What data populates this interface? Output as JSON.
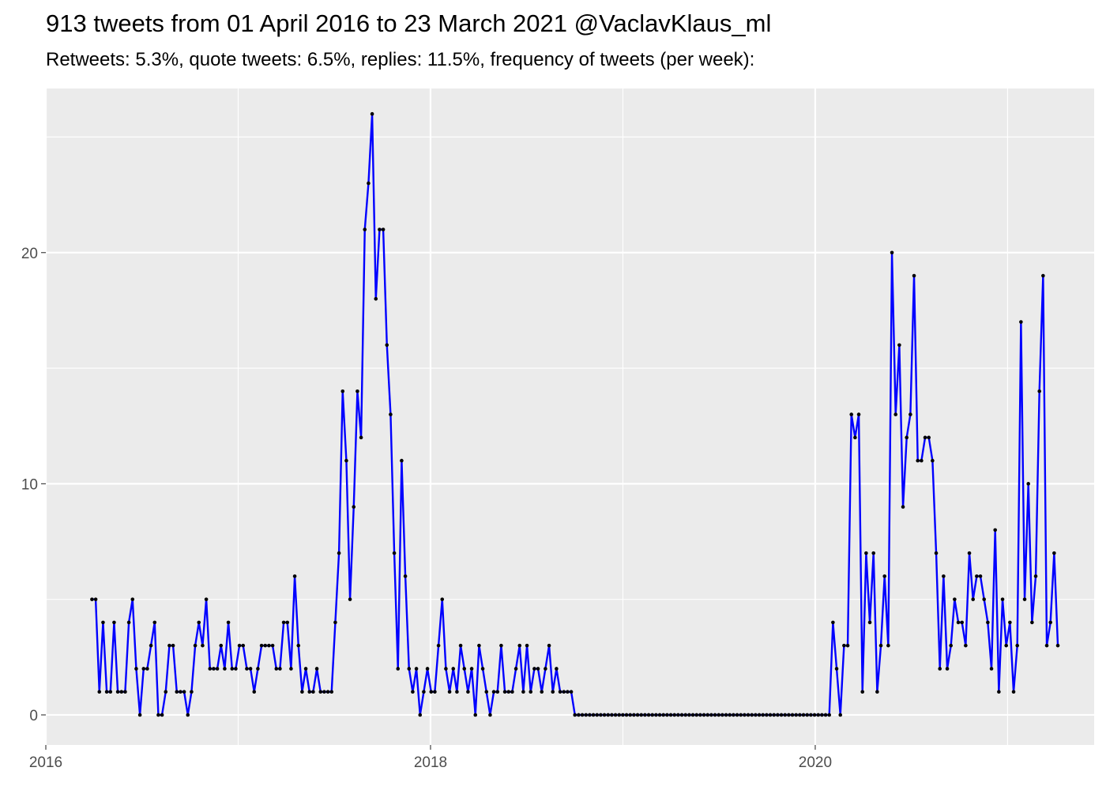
{
  "chart_data": {
    "type": "line",
    "title": "913 tweets from 01 April 2016 to 23 March 2021 @VaclavKlaus_ml",
    "subtitle": "Retweets: 5.3%, quote tweets: 6.5%, replies: 11.5%, frequency of tweets (per week):",
    "xlabel": "",
    "ylabel": "",
    "xlim": [
      2016.0,
      2021.45
    ],
    "ylim": [
      -1.3,
      27.1
    ],
    "x_ticks": [
      "2016",
      "2018",
      "2020"
    ],
    "y_ticks": [
      "0",
      "10",
      "20"
    ],
    "grid": true,
    "x_start": 2016.24,
    "x_step_weeks": 1,
    "series": [
      {
        "color": "#0000ff",
        "marker_color": "#000000",
        "values": [
          5,
          5,
          1,
          4,
          1,
          1,
          4,
          1,
          1,
          1,
          4,
          5,
          2,
          0,
          2,
          2,
          3,
          4,
          0,
          0,
          1,
          3,
          3,
          1,
          1,
          1,
          0,
          1,
          3,
          4,
          3,
          5,
          2,
          2,
          2,
          3,
          2,
          4,
          2,
          2,
          3,
          3,
          2,
          2,
          1,
          2,
          3,
          3,
          3,
          3,
          2,
          2,
          4,
          4,
          2,
          6,
          3,
          1,
          2,
          1,
          1,
          2,
          1,
          1,
          1,
          1,
          4,
          7,
          14,
          11,
          5,
          9,
          14,
          12,
          21,
          23,
          26,
          18,
          21,
          21,
          16,
          13,
          7,
          2,
          11,
          6,
          2,
          1,
          2,
          0,
          1,
          2,
          1,
          1,
          3,
          5,
          2,
          1,
          2,
          1,
          3,
          2,
          1,
          2,
          0,
          3,
          2,
          1,
          0,
          1,
          1,
          3,
          1,
          1,
          1,
          2,
          3,
          1,
          3,
          1,
          2,
          2,
          1,
          2,
          3,
          1,
          2,
          1,
          1,
          1,
          1,
          0,
          0,
          0,
          0,
          0,
          0,
          0,
          0,
          0,
          0,
          0,
          0,
          0,
          0,
          0,
          0,
          0,
          0,
          0,
          0,
          0,
          0,
          0,
          0,
          0,
          0,
          0,
          0,
          0,
          0,
          0,
          0,
          0,
          0,
          0,
          0,
          0,
          0,
          0,
          0,
          0,
          0,
          0,
          0,
          0,
          0,
          0,
          0,
          0,
          0,
          0,
          0,
          0,
          0,
          0,
          0,
          0,
          0,
          0,
          0,
          0,
          0,
          0,
          0,
          0,
          0,
          0,
          0,
          0,
          0,
          4,
          2,
          0,
          3,
          3,
          13,
          12,
          13,
          1,
          7,
          4,
          7,
          1,
          3,
          6,
          3,
          20,
          13,
          16,
          9,
          12,
          13,
          19,
          11,
          11,
          12,
          12,
          11,
          7,
          2,
          6,
          2,
          3,
          5,
          4,
          4,
          3,
          7,
          5,
          6,
          6,
          5,
          4,
          2,
          8,
          1,
          5,
          3,
          4,
          1,
          3,
          17,
          5,
          10,
          4,
          6,
          14,
          19,
          3,
          4,
          7,
          3
        ]
      }
    ]
  }
}
